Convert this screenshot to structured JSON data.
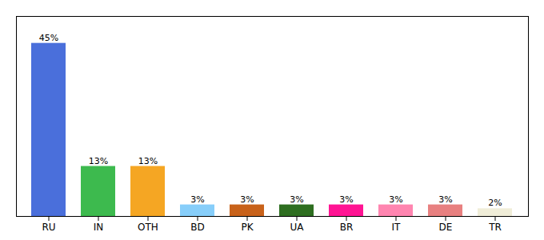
{
  "chart_data": {
    "type": "bar",
    "categories": [
      "RU",
      "IN",
      "OTH",
      "BD",
      "PK",
      "UA",
      "BR",
      "IT",
      "DE",
      "TR"
    ],
    "values": [
      45,
      13,
      13,
      3,
      3,
      3,
      3,
      3,
      3,
      2
    ],
    "value_labels": [
      "45%",
      "13%",
      "13%",
      "3%",
      "3%",
      "3%",
      "3%",
      "3%",
      "3%",
      "2%"
    ],
    "colors": [
      "#4a6fdb",
      "#3dba4e",
      "#f5a623",
      "#87cefa",
      "#c8621a",
      "#2e6e20",
      "#ff1493",
      "#ff85b0",
      "#e88080",
      "#f0edd8"
    ],
    "ylim": [
      0,
      52
    ],
    "data_labels": true,
    "tick_labels": "x",
    "grid": false
  }
}
